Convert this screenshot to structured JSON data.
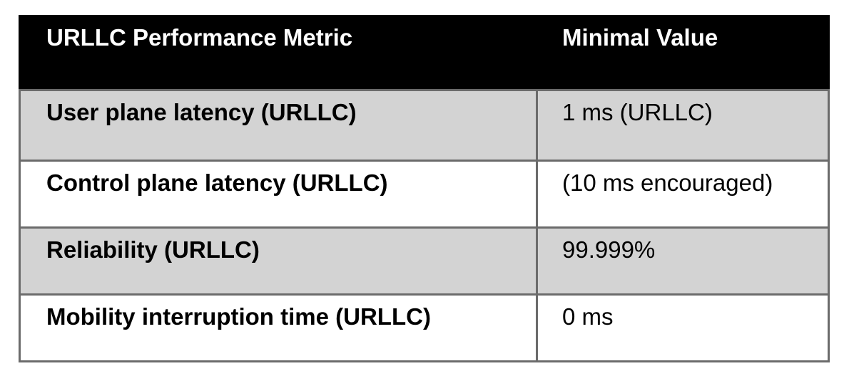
{
  "table": {
    "headers": [
      "URLLC Performance Metric",
      "Minimal Value"
    ],
    "rows": [
      {
        "metric": "User plane latency (URLLC)",
        "value": "1 ms (URLLC)"
      },
      {
        "metric": "Control plane latency (URLLC)",
        "value": "(10 ms encouraged)"
      },
      {
        "metric": "Reliability (URLLC)",
        "value": "99.999%"
      },
      {
        "metric": "Mobility interruption time (URLLC)",
        "value": "0 ms"
      }
    ],
    "colors": {
      "header_bg": "#000000",
      "header_text": "#ffffff",
      "shaded_row_bg": "#d3d3d3",
      "plain_row_bg": "#ffffff",
      "border": "#6b6b6b"
    }
  }
}
